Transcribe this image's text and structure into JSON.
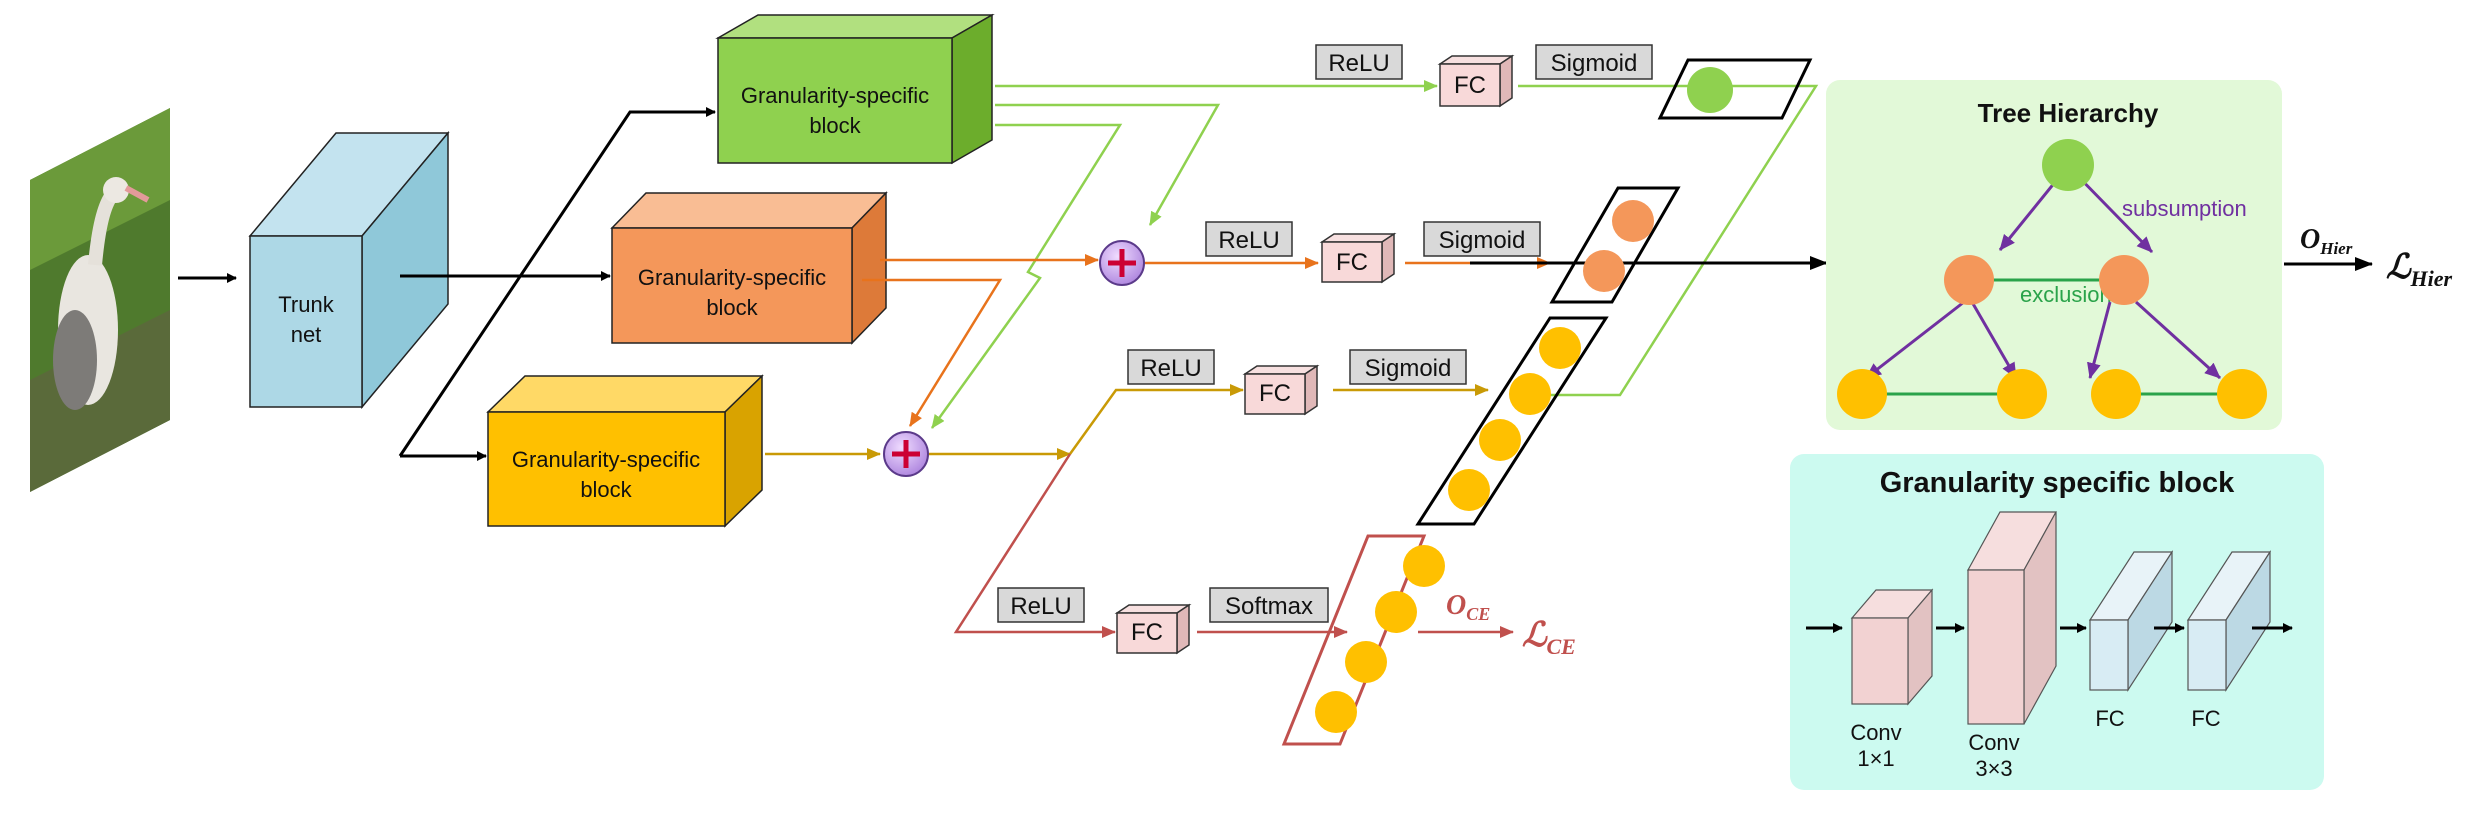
{
  "trunk": {
    "line1": "Trunk",
    "line2": "net"
  },
  "blocks": [
    {
      "line1": "Granularity-specific",
      "line2": "block"
    },
    {
      "line1": "Granularity-specific",
      "line2": "block"
    },
    {
      "line1": "Granularity-specific",
      "line2": "block"
    }
  ],
  "heads": [
    {
      "act": "ReLU",
      "fc": "FC",
      "out": "Sigmoid"
    },
    {
      "act": "ReLU",
      "fc": "FC",
      "out": "Sigmoid"
    },
    {
      "act": "ReLU",
      "fc": "FC",
      "out": "Sigmoid"
    },
    {
      "act": "ReLU",
      "fc": "FC",
      "out": "Softmax"
    }
  ],
  "outputs": {
    "o_ce": "O",
    "o_ce_sub": "CE",
    "l_ce": "ℒ",
    "l_ce_sub": "CE",
    "o_hier": "O",
    "o_hier_sub": "Hier",
    "l_hier": "ℒ",
    "l_hier_sub": "Hier"
  },
  "tree": {
    "title": "Tree Hierarchy",
    "subsumption": "subsumption",
    "exclusion": "exclusion"
  },
  "gsb_legend": {
    "title": "Granularity specific block",
    "conv1_a": "Conv",
    "conv1_b": "1×1",
    "conv2_a": "Conv",
    "conv2_b": "3×3",
    "fc1": "FC",
    "fc2": "FC"
  },
  "colors": {
    "green": "#8fd14f",
    "orange": "#f4975a",
    "yellow": "#ffc000",
    "trunk": "#add8e6",
    "red_line": "#c0504d",
    "purple": "#7030a0",
    "tree_bg": "#e2f9d8",
    "gsb_bg": "#ccfaf0"
  }
}
